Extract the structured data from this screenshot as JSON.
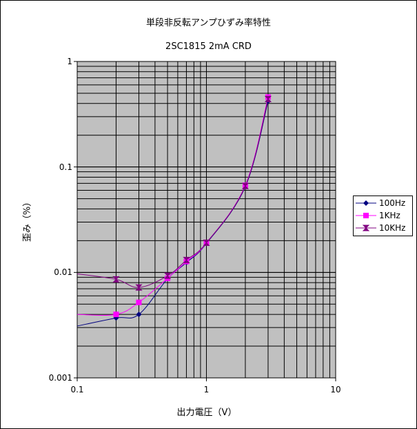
{
  "chart_data": {
    "type": "line",
    "title": "単段非反転アンプひずみ率特性",
    "subtitle": "2SC1815 2mA CRD",
    "xlabel": "出力電圧（V）",
    "ylabel": "歪み（%）",
    "x_scale": "log",
    "y_scale": "log",
    "xlim": [
      0.1,
      10
    ],
    "ylim": [
      0.001,
      1
    ],
    "x_ticks": [
      "0.1",
      "1",
      "10"
    ],
    "y_ticks": [
      "1",
      "0.1",
      "0.01",
      "0.001"
    ],
    "grid": true,
    "legend_position": "right",
    "series": [
      {
        "name": "100Hz",
        "color": "#000080",
        "marker": "diamond",
        "x": [
          0.1,
          0.2,
          0.3,
          0.5,
          0.7,
          1.0,
          2.0,
          3.0
        ],
        "y": [
          0.0031,
          0.0037,
          0.004,
          0.0087,
          0.0124,
          0.0188,
          0.065,
          0.42
        ]
      },
      {
        "name": "1KHz",
        "color": "#ff00ff",
        "marker": "square",
        "x": [
          0.1,
          0.2,
          0.3,
          0.5,
          0.7,
          1.0,
          2.0,
          3.0
        ],
        "y": [
          0.004,
          0.004,
          0.0052,
          0.0088,
          0.0127,
          0.019,
          0.067,
          0.46
        ]
      },
      {
        "name": "10KHz",
        "color": "#800080",
        "marker": "x",
        "x": [
          0.1,
          0.2,
          0.3,
          0.5,
          0.7,
          1.0,
          2.0,
          3.0
        ],
        "y": [
          0.0097,
          0.0086,
          0.0072,
          0.0093,
          0.0131,
          0.0191,
          0.066,
          0.44
        ]
      }
    ]
  }
}
